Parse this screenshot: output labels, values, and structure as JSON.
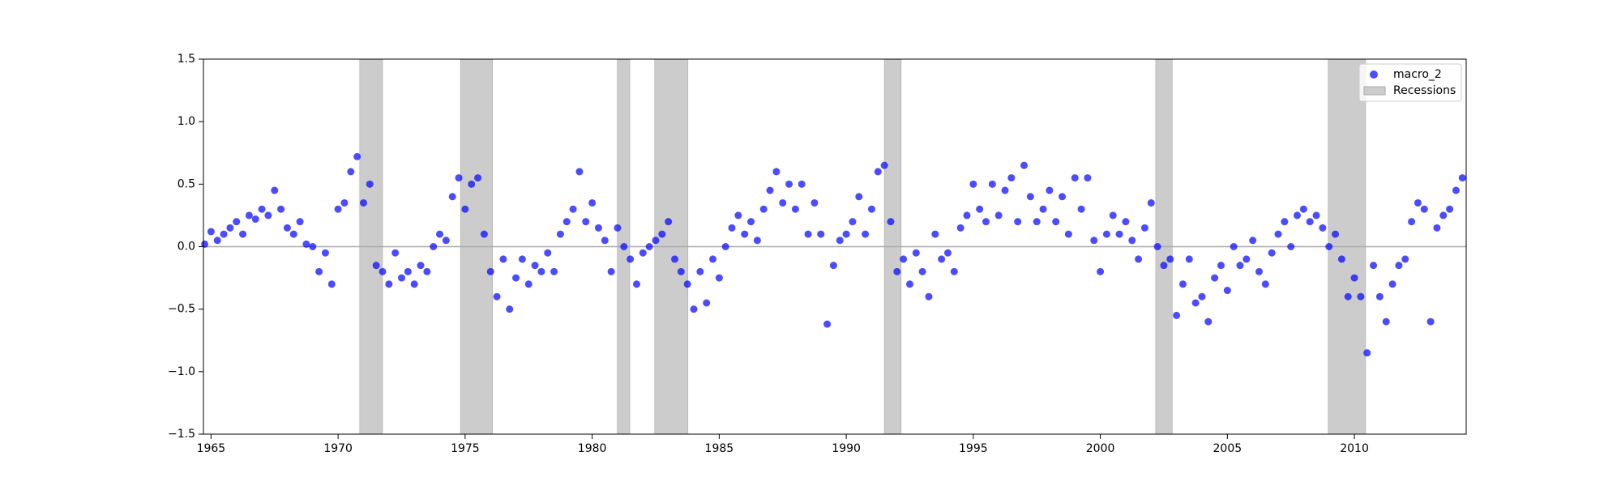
{
  "chart_data": {
    "type": "scatter",
    "x": [
      1964.75,
      1965,
      1965.25,
      1965.5,
      1965.75,
      1966,
      1966.25,
      1966.5,
      1966.75,
      1967,
      1967.25,
      1967.5,
      1967.75,
      1968,
      1968.25,
      1968.5,
      1968.75,
      1969,
      1969.25,
      1969.5,
      1969.75,
      1970,
      1970.25,
      1970.5,
      1970.75,
      1971,
      1971.25,
      1971.5,
      1971.75,
      1972,
      1972.25,
      1972.5,
      1972.75,
      1973,
      1973.25,
      1973.5,
      1973.75,
      1974,
      1974.25,
      1974.5,
      1974.75,
      1975,
      1975.25,
      1975.5,
      1975.75,
      1976,
      1976.25,
      1976.5,
      1976.75,
      1977,
      1977.25,
      1977.5,
      1977.75,
      1978,
      1978.25,
      1978.5,
      1978.75,
      1979,
      1979.25,
      1979.5,
      1979.75,
      1980,
      1980.25,
      1980.5,
      1980.75,
      1981,
      1981.25,
      1981.5,
      1981.75,
      1982,
      1982.25,
      1982.5,
      1982.75,
      1983,
      1983.25,
      1983.5,
      1983.75,
      1984,
      1984.25,
      1984.5,
      1984.75,
      1985,
      1985.25,
      1985.5,
      1985.75,
      1986,
      1986.25,
      1986.5,
      1986.75,
      1987,
      1987.25,
      1987.5,
      1987.75,
      1988,
      1988.25,
      1988.5,
      1988.75,
      1989,
      1989.25,
      1989.5,
      1989.75,
      1990,
      1990.25,
      1990.5,
      1990.75,
      1991,
      1991.25,
      1991.5,
      1991.75,
      1992,
      1992.25,
      1992.5,
      1992.75,
      1993,
      1993.25,
      1993.5,
      1993.75,
      1994,
      1994.25,
      1994.5,
      1994.75,
      1995,
      1995.25,
      1995.5,
      1995.75,
      1996,
      1996.25,
      1996.5,
      1996.75,
      1997,
      1997.25,
      1997.5,
      1997.75,
      1998,
      1998.25,
      1998.5,
      1998.75,
      1999,
      1999.25,
      1999.5,
      1999.75,
      2000,
      2000.25,
      2000.5,
      2000.75,
      2001,
      2001.25,
      2001.5,
      2001.75,
      2002,
      2002.25,
      2002.5,
      2002.75,
      2003,
      2003.25,
      2003.5,
      2003.75,
      2004,
      2004.25,
      2004.5,
      2004.75,
      2005,
      2005.25,
      2005.5,
      2005.75,
      2006,
      2006.25,
      2006.5,
      2006.75,
      2007,
      2007.25,
      2007.5,
      2007.75,
      2008,
      2008.25,
      2008.5,
      2008.75,
      2009,
      2009.25,
      2009.5,
      2009.75,
      2010,
      2010.25,
      2010.5,
      2010.75,
      2011,
      2011.25,
      2011.5,
      2011.75,
      2012,
      2012.25,
      2012.5,
      2012.75,
      2013,
      2013.25,
      2013.5,
      2013.75,
      2014,
      2014.25
    ],
    "series": [
      {
        "name": "macro_2",
        "color": "#0000ff",
        "values": [
          0.02,
          0.12,
          0.05,
          0.1,
          0.15,
          0.2,
          0.1,
          0.25,
          0.22,
          0.3,
          0.25,
          0.45,
          0.3,
          0.15,
          0.1,
          0.2,
          0.02,
          0.0,
          -0.2,
          -0.05,
          -0.3,
          0.3,
          0.35,
          0.6,
          0.72,
          0.35,
          0.5,
          -0.15,
          -0.2,
          -0.3,
          -0.05,
          -0.25,
          -0.2,
          -0.3,
          -0.15,
          -0.2,
          0.0,
          0.1,
          0.05,
          0.4,
          0.55,
          0.3,
          0.5,
          0.55,
          0.1,
          -0.2,
          -0.4,
          -0.1,
          -0.5,
          -0.25,
          -0.1,
          -0.3,
          -0.15,
          -0.2,
          -0.05,
          -0.2,
          0.1,
          0.2,
          0.3,
          0.6,
          0.2,
          0.35,
          0.15,
          0.05,
          -0.2,
          0.15,
          0.0,
          -0.1,
          -0.3,
          -0.05,
          0.0,
          0.05,
          0.1,
          0.2,
          -0.1,
          -0.2,
          -0.3,
          -0.5,
          -0.2,
          -0.45,
          -0.1,
          -0.25,
          0.0,
          0.15,
          0.25,
          0.1,
          0.2,
          0.05,
          0.3,
          0.45,
          0.6,
          0.35,
          0.5,
          0.3,
          0.5,
          0.1,
          0.35,
          0.1,
          -0.62,
          -0.15,
          0.05,
          0.1,
          0.2,
          0.4,
          0.1,
          0.3,
          0.6,
          0.65,
          0.2,
          -0.2,
          -0.1,
          -0.3,
          -0.05,
          -0.2,
          -0.4,
          0.1,
          -0.1,
          -0.05,
          -0.2,
          0.15,
          0.25,
          0.5,
          0.3,
          0.2,
          0.5,
          0.25,
          0.45,
          0.55,
          0.2,
          0.65,
          0.4,
          0.2,
          0.3,
          0.45,
          0.2,
          0.4,
          0.1,
          0.55,
          0.3,
          0.55,
          0.05,
          -0.2,
          0.1,
          0.25,
          0.1,
          0.2,
          0.05,
          -0.1,
          0.15,
          0.35,
          0.0,
          -0.15,
          -0.1,
          -0.55,
          -0.3,
          -0.1,
          -0.45,
          -0.4,
          -0.6,
          -0.25,
          -0.15,
          -0.35,
          0.0,
          -0.15,
          -0.1,
          0.05,
          -0.2,
          -0.3,
          -0.05,
          0.1,
          0.2,
          0.0,
          0.25,
          0.3,
          0.2,
          0.25,
          0.15,
          0.0,
          0.1,
          -0.1,
          -0.4,
          -0.25,
          -0.4,
          -0.85,
          -0.15,
          -0.4,
          -0.6,
          -0.3,
          -0.15,
          -0.1,
          0.2,
          0.35,
          0.3,
          -0.6,
          0.15,
          0.25,
          0.3,
          0.45,
          0.55
        ]
      }
    ],
    "recession_label": "Recessions",
    "recession_color": "#cccccc",
    "recessions": [
      [
        1970.85,
        1971.75
      ],
      [
        1974.82,
        1976.08
      ],
      [
        1980.99,
        1981.48
      ],
      [
        1982.46,
        1983.77
      ],
      [
        1991.5,
        1992.16
      ],
      [
        2002.18,
        2002.83
      ],
      [
        2008.97,
        2010.44
      ]
    ],
    "hline": 0,
    "xlim": [
      1964.7,
      2014.4
    ],
    "ylim": [
      -1.5,
      1.5
    ],
    "xticks": [
      1965,
      1970,
      1975,
      1980,
      1985,
      1990,
      1995,
      2000,
      2005,
      2010
    ],
    "yticks": [
      {
        "value": -1.5,
        "label": "−1.5"
      },
      {
        "value": -1.0,
        "label": "−1.0"
      },
      {
        "value": -0.5,
        "label": "−0.5"
      },
      {
        "value": 0.0,
        "label": "0.0"
      },
      {
        "value": 0.5,
        "label": "0.5"
      },
      {
        "value": 1.0,
        "label": "1.0"
      },
      {
        "value": 1.5,
        "label": "1.5"
      }
    ],
    "legend": "upper right"
  }
}
